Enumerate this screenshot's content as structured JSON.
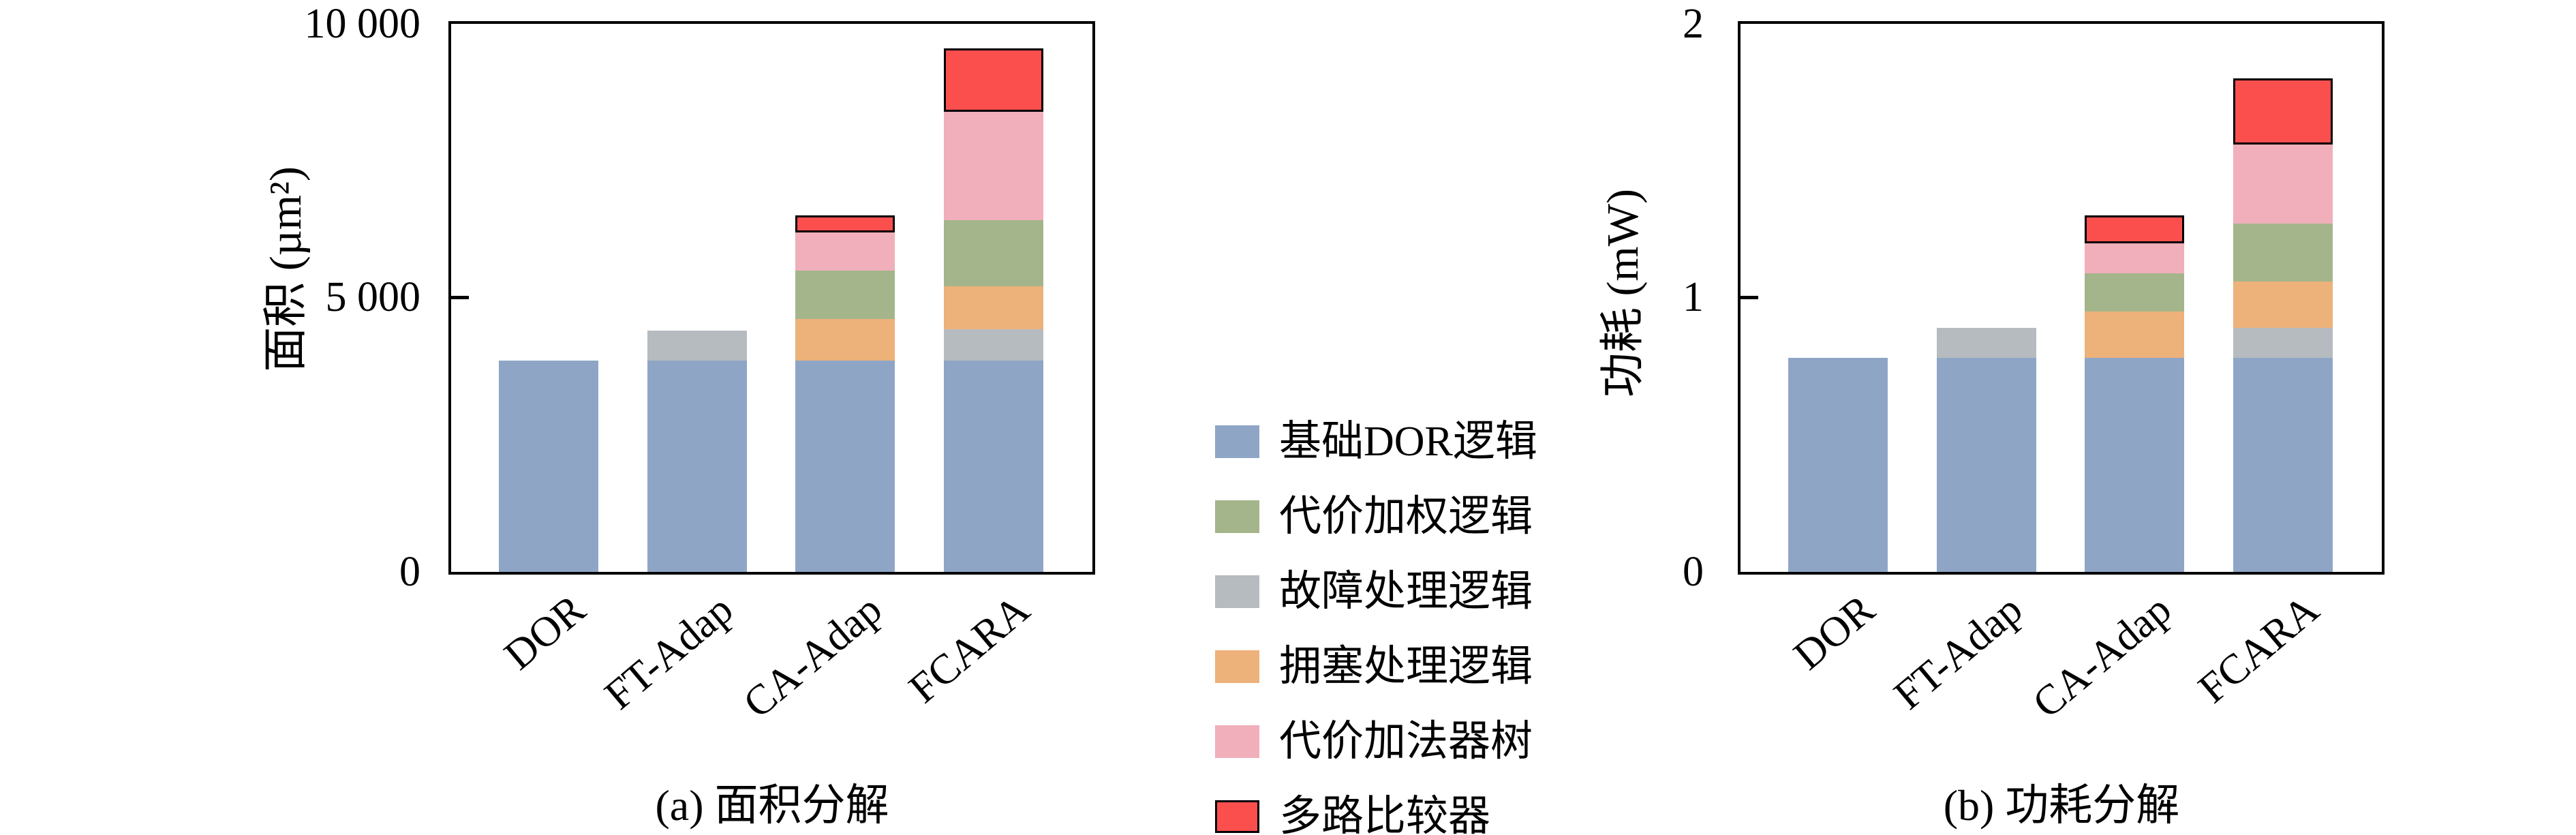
{
  "legend": {
    "items": [
      {
        "label": "基础DOR逻辑",
        "color": "#8FA5C6",
        "outlined": false
      },
      {
        "label": "代价加权逻辑",
        "color": "#A4B58B",
        "outlined": false
      },
      {
        "label": "故障处理逻辑",
        "color": "#B6BBC0",
        "outlined": false
      },
      {
        "label": "拥塞处理逻辑",
        "color": "#EDB17A",
        "outlined": false
      },
      {
        "label": "代价加法器树",
        "color": "#F0AFBA",
        "outlined": false
      },
      {
        "label": "多路比较器",
        "color": "#FB4F4E",
        "outlined": true
      }
    ]
  },
  "chart_data": [
    {
      "id": "area",
      "type": "bar",
      "stacked": true,
      "title": "(a) 面积分解",
      "ylabel": "面积 (µm²)",
      "xlabel": "",
      "categories": [
        "DOR",
        "FT-Adap",
        "CA-Adap",
        "FCARA"
      ],
      "ylim": [
        0,
        10000
      ],
      "grid": false,
      "legend_position": "center-right-of-chart",
      "yticks": [
        {
          "value": 0,
          "label": "0"
        },
        {
          "value": 5000,
          "label": "5 000"
        },
        {
          "value": 10000,
          "label": "10 000"
        }
      ],
      "series": [
        {
          "name": "基础DOR逻辑",
          "color": "#8FA5C6",
          "outlined": false,
          "values": [
            3850,
            3850,
            3850,
            3850
          ]
        },
        {
          "name": "故障处理逻辑",
          "color": "#B6BBC0",
          "outlined": false,
          "values": [
            0,
            550,
            0,
            580
          ]
        },
        {
          "name": "拥塞处理逻辑",
          "color": "#EDB17A",
          "outlined": false,
          "values": [
            0,
            0,
            770,
            780
          ]
        },
        {
          "name": "代价加权逻辑",
          "color": "#A4B58B",
          "outlined": false,
          "values": [
            0,
            0,
            880,
            1210
          ]
        },
        {
          "name": "代价加法器树",
          "color": "#F0AFBA",
          "outlined": false,
          "values": [
            0,
            0,
            700,
            1980
          ]
        },
        {
          "name": "多路比较器",
          "color": "#FB4F4E",
          "outlined": true,
          "values": [
            0,
            0,
            300,
            1150
          ]
        }
      ]
    },
    {
      "id": "power",
      "type": "bar",
      "stacked": true,
      "title": "(b) 功耗分解",
      "ylabel": "功耗 (mW)",
      "xlabel": "",
      "categories": [
        "DOR",
        "FT-Adap",
        "CA-Adap",
        "FCARA"
      ],
      "ylim": [
        0,
        2
      ],
      "grid": false,
      "legend_position": "center-left-of-chart",
      "yticks": [
        {
          "value": 0,
          "label": "0"
        },
        {
          "value": 1,
          "label": "1"
        },
        {
          "value": 2,
          "label": "2"
        }
      ],
      "series": [
        {
          "name": "基础DOR逻辑",
          "color": "#8FA5C6",
          "outlined": false,
          "values": [
            0.78,
            0.78,
            0.78,
            0.78
          ]
        },
        {
          "name": "故障处理逻辑",
          "color": "#B6BBC0",
          "outlined": false,
          "values": [
            0,
            0.11,
            0,
            0.11
          ]
        },
        {
          "name": "拥塞处理逻辑",
          "color": "#EDB17A",
          "outlined": false,
          "values": [
            0,
            0,
            0.17,
            0.17
          ]
        },
        {
          "name": "代价加权逻辑",
          "color": "#A4B58B",
          "outlined": false,
          "values": [
            0,
            0,
            0.14,
            0.21
          ]
        },
        {
          "name": "代价加法器树",
          "color": "#F0AFBA",
          "outlined": false,
          "values": [
            0,
            0,
            0.11,
            0.29
          ]
        },
        {
          "name": "多路比较器",
          "color": "#FB4F4E",
          "outlined": true,
          "values": [
            0,
            0,
            0.1,
            0.24
          ]
        }
      ]
    }
  ]
}
